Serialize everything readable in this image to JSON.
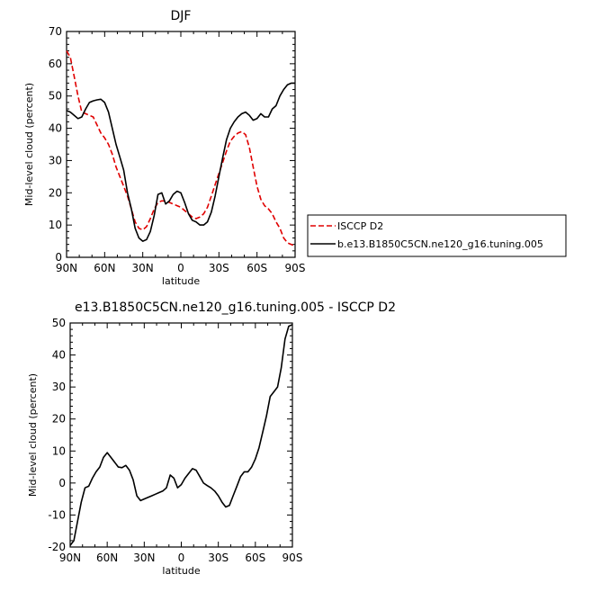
{
  "chart_data": [
    {
      "type": "line",
      "title": "DJF",
      "xlabel": "latitude",
      "ylabel": "Mid-level cloud (percent)",
      "xlim": [
        90,
        -90
      ],
      "ylim": [
        0,
        70
      ],
      "x_ticks": [
        90,
        60,
        30,
        0,
        -30,
        -60,
        -90
      ],
      "x_tick_labels": [
        "90N",
        "60N",
        "30N",
        "0",
        "30S",
        "60S",
        "90S"
      ],
      "y_ticks": [
        0,
        10,
        20,
        30,
        40,
        50,
        60,
        70
      ],
      "y_tick_labels": [
        "0",
        "10",
        "20",
        "30",
        "40",
        "50",
        "60",
        "70"
      ],
      "legend_position": "right",
      "series": [
        {
          "name": "ISCCP D2",
          "color": "#e00000",
          "dashed": true,
          "x": [
            90,
            87,
            84,
            81,
            78,
            75,
            72,
            69,
            66,
            63,
            60,
            57,
            54,
            51,
            48,
            45,
            42,
            39,
            36,
            33,
            30,
            27,
            24,
            21,
            18,
            15,
            12,
            9,
            6,
            3,
            0,
            -3,
            -6,
            -9,
            -12,
            -15,
            -18,
            -21,
            -24,
            -27,
            -30,
            -33,
            -36,
            -39,
            -42,
            -45,
            -48,
            -51,
            -54,
            -57,
            -60,
            -63,
            -66,
            -69,
            -72,
            -75,
            -78,
            -81,
            -84,
            -87,
            -90
          ],
          "y": [
            64,
            62,
            56,
            50,
            45,
            44.5,
            44,
            43.5,
            41,
            38.5,
            37,
            35,
            32,
            28,
            25,
            22,
            19,
            15,
            11,
            9,
            8.5,
            9.5,
            12,
            15,
            17,
            17.5,
            17.5,
            17,
            16.5,
            16,
            15.5,
            14.5,
            13.5,
            12.5,
            12,
            12.5,
            13.5,
            15.5,
            19,
            22.5,
            26,
            29.5,
            33,
            36,
            37.5,
            38.5,
            39,
            38,
            34,
            28,
            22,
            18,
            16,
            15,
            13.5,
            11,
            9,
            6,
            4.5,
            4,
            3.5
          ]
        },
        {
          "name": "b.e13.B1850C5CN.ne120_g16.tuning.005",
          "color": "#000000",
          "dashed": false,
          "x": [
            90,
            87,
            84,
            81,
            78,
            75,
            72,
            69,
            66,
            63,
            60,
            57,
            54,
            51,
            48,
            45,
            42,
            39,
            36,
            33,
            30,
            27,
            24,
            21,
            18,
            15,
            12,
            9,
            6,
            3,
            0,
            -3,
            -6,
            -9,
            -12,
            -15,
            -18,
            -21,
            -24,
            -27,
            -30,
            -33,
            -36,
            -39,
            -42,
            -45,
            -48,
            -51,
            -54,
            -57,
            -60,
            -63,
            -66,
            -69,
            -72,
            -75,
            -78,
            -81,
            -84,
            -87,
            -90
          ],
          "y": [
            45.5,
            45,
            44,
            43,
            43.5,
            46,
            48,
            48.5,
            48.8,
            49,
            48,
            45,
            40,
            35,
            31,
            27,
            20,
            15,
            9,
            6,
            5,
            5.5,
            8,
            13,
            19.5,
            20,
            16.5,
            17.5,
            19.5,
            20.5,
            20,
            17,
            13.5,
            11.5,
            11,
            10,
            10,
            11,
            14,
            19,
            25,
            31,
            36.5,
            40,
            42,
            43.5,
            44.5,
            45,
            44,
            42.5,
            43,
            44.5,
            43.5,
            43.5,
            46,
            47,
            50,
            52,
            53.5,
            54,
            54
          ]
        }
      ]
    },
    {
      "type": "line",
      "title": "e13.B1850C5CN.ne120_g16.tuning.005 - ISCCP D2",
      "xlabel": "latitude",
      "ylabel": "Mid-level cloud (percent)",
      "xlim": [
        90,
        -90
      ],
      "ylim": [
        -20,
        50
      ],
      "x_ticks": [
        90,
        60,
        30,
        0,
        -30,
        -60,
        -90
      ],
      "x_tick_labels": [
        "90N",
        "60N",
        "30N",
        "0",
        "30S",
        "60S",
        "90S"
      ],
      "y_ticks": [
        -20,
        -10,
        0,
        10,
        20,
        30,
        40,
        50
      ],
      "y_tick_labels": [
        "-20",
        "-10",
        "0",
        "10",
        "20",
        "30",
        "40",
        "50"
      ],
      "series": [
        {
          "color": "#000000",
          "dashed": false,
          "x": [
            90,
            87,
            84,
            81,
            78,
            75,
            72,
            69,
            66,
            63,
            60,
            57,
            54,
            51,
            48,
            45,
            42,
            39,
            36,
            33,
            30,
            27,
            24,
            21,
            18,
            15,
            12,
            9,
            6,
            3,
            0,
            -3,
            -6,
            -9,
            -12,
            -15,
            -18,
            -21,
            -24,
            -27,
            -30,
            -33,
            -36,
            -39,
            -42,
            -45,
            -48,
            -51,
            -54,
            -57,
            -60,
            -63,
            -66,
            -69,
            -72,
            -75,
            -78,
            -81,
            -84,
            -87,
            -90
          ],
          "y": [
            -19.5,
            -18,
            -12,
            -6,
            -1.5,
            -1,
            1.5,
            3.5,
            5,
            8,
            9.5,
            8,
            6.5,
            5,
            4.8,
            5.5,
            4,
            1,
            -4,
            -5.5,
            -5,
            -4.5,
            -4,
            -3.5,
            -3,
            -2.5,
            -1.5,
            2.5,
            1.5,
            -1.5,
            -0.5,
            1.5,
            3,
            4.5,
            4,
            2,
            0,
            -0.8,
            -1.5,
            -2.5,
            -4,
            -6,
            -7.5,
            -7,
            -4,
            -1,
            2,
            3.5,
            3.5,
            5,
            7.5,
            11,
            16,
            21,
            27,
            28.5,
            30,
            36,
            45,
            49,
            49.5
          ]
        }
      ]
    }
  ]
}
